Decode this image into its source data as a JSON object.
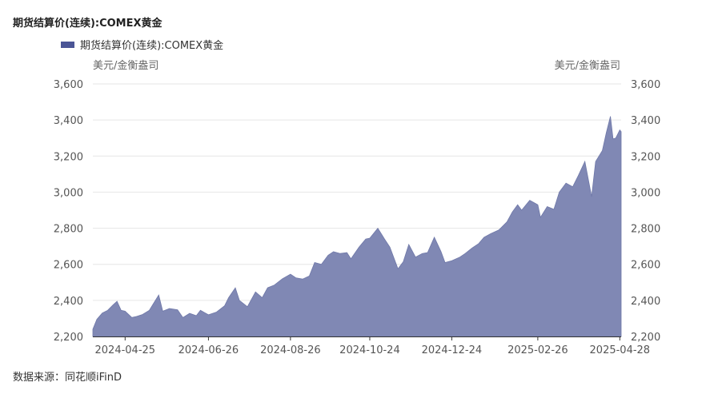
{
  "title": "期货结算价(连续):COMEX黄金",
  "legend_label": "期货结算价(连续):COMEX黄金",
  "unit_left": "美元/金衡盎司",
  "unit_right": "美元/金衡盎司",
  "source": "数据来源：同花顺iFinD",
  "colors": {
    "area_fill": "#8088b4",
    "area_line": "#6f78a8",
    "legend": "#4b5596",
    "grid": "#e6e6e6",
    "axis": "#333333"
  },
  "chart_data": {
    "type": "area",
    "title": "期货结算价(连续):COMEX黄金",
    "ylabel": "美元/金衡盎司",
    "ylim": [
      2200,
      3600
    ],
    "yticks": [
      2200,
      2400,
      2600,
      2800,
      3000,
      3200,
      3400,
      3600
    ],
    "ytick_labels": [
      "2,200",
      "2,400",
      "2,600",
      "2,800",
      "3,000",
      "3,200",
      "3,400",
      "3,600"
    ],
    "xlim": [
      "2024-04-01",
      "2025-04-29"
    ],
    "xtick_dates": [
      "2024-04-25",
      "2024-06-26",
      "2024-08-26",
      "2024-10-24",
      "2024-12-24",
      "2025-02-26",
      "2025-04-28"
    ],
    "xtick_labels": [
      "2024-04-25",
      "2024-06-26",
      "2024-08-26",
      "2024-10-24",
      "2024-12-24",
      "2025-02-26",
      "2025-04-28"
    ],
    "grid": true,
    "legend_position": "top-left",
    "series": [
      {
        "name": "期货结算价(连续):COMEX黄金",
        "points": [
          [
            "2024-04-01",
            2240
          ],
          [
            "2024-04-04",
            2295
          ],
          [
            "2024-04-08",
            2330
          ],
          [
            "2024-04-12",
            2345
          ],
          [
            "2024-04-16",
            2375
          ],
          [
            "2024-04-19",
            2395
          ],
          [
            "2024-04-22",
            2345
          ],
          [
            "2024-04-25",
            2340
          ],
          [
            "2024-04-30",
            2305
          ],
          [
            "2024-05-03",
            2310
          ],
          [
            "2024-05-08",
            2322
          ],
          [
            "2024-05-13",
            2345
          ],
          [
            "2024-05-20",
            2430
          ],
          [
            "2024-05-23",
            2340
          ],
          [
            "2024-05-28",
            2355
          ],
          [
            "2024-06-03",
            2348
          ],
          [
            "2024-06-07",
            2305
          ],
          [
            "2024-06-12",
            2328
          ],
          [
            "2024-06-17",
            2315
          ],
          [
            "2024-06-20",
            2345
          ],
          [
            "2024-06-26",
            2320
          ],
          [
            "2024-07-02",
            2335
          ],
          [
            "2024-07-08",
            2370
          ],
          [
            "2024-07-11",
            2415
          ],
          [
            "2024-07-16",
            2470
          ],
          [
            "2024-07-19",
            2400
          ],
          [
            "2024-07-25",
            2365
          ],
          [
            "2024-07-31",
            2447
          ],
          [
            "2024-08-05",
            2415
          ],
          [
            "2024-08-09",
            2470
          ],
          [
            "2024-08-14",
            2485
          ],
          [
            "2024-08-20",
            2520
          ],
          [
            "2024-08-26",
            2545
          ],
          [
            "2024-08-30",
            2525
          ],
          [
            "2024-09-04",
            2518
          ],
          [
            "2024-09-09",
            2535
          ],
          [
            "2024-09-13",
            2610
          ],
          [
            "2024-09-18",
            2600
          ],
          [
            "2024-09-23",
            2650
          ],
          [
            "2024-09-27",
            2670
          ],
          [
            "2024-10-02",
            2660
          ],
          [
            "2024-10-07",
            2665
          ],
          [
            "2024-10-10",
            2630
          ],
          [
            "2024-10-16",
            2695
          ],
          [
            "2024-10-21",
            2740
          ],
          [
            "2024-10-24",
            2745
          ],
          [
            "2024-10-30",
            2800
          ],
          [
            "2024-11-04",
            2740
          ],
          [
            "2024-11-08",
            2695
          ],
          [
            "2024-11-14",
            2575
          ],
          [
            "2024-11-18",
            2615
          ],
          [
            "2024-11-22",
            2710
          ],
          [
            "2024-11-27",
            2640
          ],
          [
            "2024-12-02",
            2660
          ],
          [
            "2024-12-06",
            2665
          ],
          [
            "2024-12-11",
            2750
          ],
          [
            "2024-12-16",
            2670
          ],
          [
            "2024-12-19",
            2610
          ],
          [
            "2024-12-24",
            2620
          ],
          [
            "2024-12-30",
            2640
          ],
          [
            "2025-01-03",
            2660
          ],
          [
            "2025-01-08",
            2690
          ],
          [
            "2025-01-13",
            2715
          ],
          [
            "2025-01-17",
            2750
          ],
          [
            "2025-01-22",
            2770
          ],
          [
            "2025-01-28",
            2790
          ],
          [
            "2025-02-03",
            2835
          ],
          [
            "2025-02-07",
            2890
          ],
          [
            "2025-02-11",
            2930
          ],
          [
            "2025-02-14",
            2900
          ],
          [
            "2025-02-20",
            2955
          ],
          [
            "2025-02-26",
            2930
          ],
          [
            "2025-02-28",
            2860
          ],
          [
            "2025-03-05",
            2920
          ],
          [
            "2025-03-10",
            2905
          ],
          [
            "2025-03-14",
            3000
          ],
          [
            "2025-03-19",
            3050
          ],
          [
            "2025-03-24",
            3030
          ],
          [
            "2025-03-28",
            3090
          ],
          [
            "2025-04-02",
            3170
          ],
          [
            "2025-04-07",
            2975
          ],
          [
            "2025-04-10",
            3170
          ],
          [
            "2025-04-15",
            3230
          ],
          [
            "2025-04-18",
            3330
          ],
          [
            "2025-04-21",
            3420
          ],
          [
            "2025-04-23",
            3295
          ],
          [
            "2025-04-25",
            3300
          ],
          [
            "2025-04-28",
            3345
          ],
          [
            "2025-04-29",
            3335
          ]
        ]
      }
    ]
  }
}
